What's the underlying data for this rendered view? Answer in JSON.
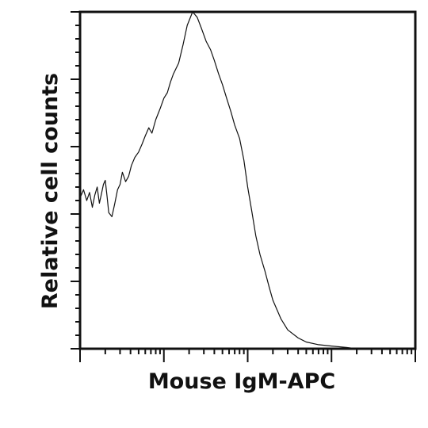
{
  "chart_data": {
    "type": "line",
    "title": "",
    "xlabel": "Mouse IgM-APC",
    "ylabel": "Relative cell counts",
    "x_scale": "log",
    "xlim": [
      1,
      10000
    ],
    "ylim": [
      0,
      250
    ],
    "grid": false,
    "legend": "none",
    "line_color": "#111111",
    "series": [
      {
        "x": [
          1.0,
          1.1,
          1.2,
          1.3,
          1.4,
          1.5,
          1.6,
          1.7,
          1.8,
          1.9,
          2.0,
          2.1,
          2.2,
          2.4,
          2.6,
          2.8,
          3.0,
          3.2,
          3.5,
          3.8,
          4.1,
          4.5,
          5.0,
          5.5,
          6.0,
          6.6,
          7.2,
          8.0,
          9.0,
          10.0,
          11.0,
          12.0,
          13.0,
          15.0,
          17.0,
          19.0,
          22.0,
          25.0,
          28.0,
          32.0,
          36.0,
          40.0,
          45.0,
          50.0,
          56.0,
          63.0,
          70.0,
          80.0,
          90.0,
          100.0,
          112.0,
          125.0,
          140.0,
          160.0,
          180.0,
          200.0,
          250.0,
          300.0,
          400.0,
          500.0,
          700.0,
          1000.0,
          1500.0,
          2000.0,
          3000.0,
          5000.0,
          7000.0,
          10000.0
        ],
        "values": [
          112,
          118,
          110,
          116,
          105,
          114,
          120,
          108,
          115,
          122,
          125,
          113,
          101,
          98,
          108,
          118,
          122,
          131,
          124,
          128,
          136,
          142,
          146,
          152,
          158,
          164,
          160,
          170,
          178,
          186,
          190,
          198,
          204,
          212,
          226,
          240,
          250,
          246,
          238,
          228,
          222,
          214,
          204,
          196,
          186,
          176,
          166,
          156,
          140,
          120,
          102,
          84,
          70,
          58,
          46,
          36,
          22,
          14,
          8,
          5,
          3,
          2,
          1,
          0,
          0,
          0,
          0,
          0
        ]
      }
    ]
  }
}
